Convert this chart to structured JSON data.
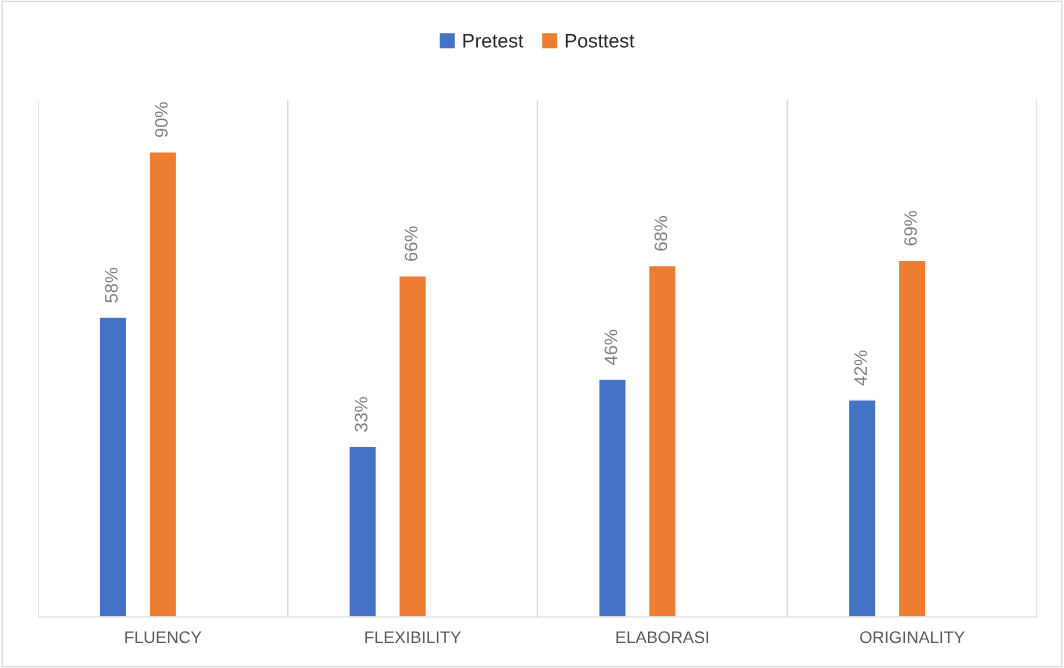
{
  "chart_data": {
    "type": "bar",
    "categories": [
      "FLUENCY",
      "FLEXIBILITY",
      "ELABORASI",
      "ORIGINALITY"
    ],
    "series": [
      {
        "name": "Pretest",
        "color": "#4472c4",
        "values": [
          58,
          33,
          46,
          42
        ],
        "value_labels": [
          "58%",
          "33%",
          "46%",
          "42%"
        ]
      },
      {
        "name": "Posttest",
        "color": "#ed7d31",
        "values": [
          90,
          66,
          68,
          69
        ],
        "value_labels": [
          "90%",
          "66%",
          "68%",
          "69%"
        ]
      }
    ],
    "ylim": [
      0,
      100
    ],
    "tick_labels": "x",
    "grid": "x",
    "legend": "top"
  }
}
